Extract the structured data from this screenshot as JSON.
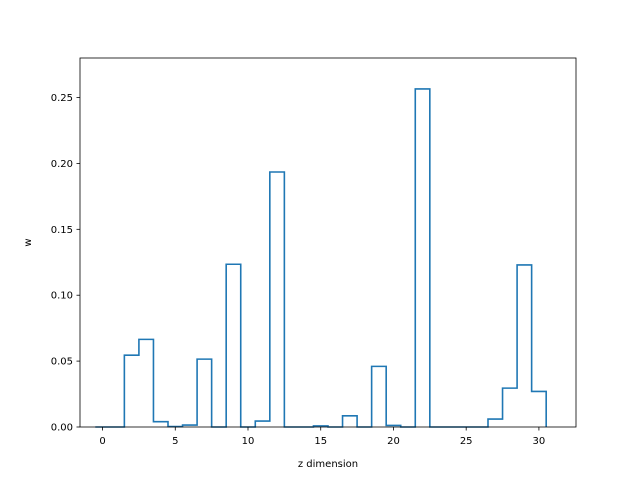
{
  "chart_data": {
    "type": "bar",
    "style": "step-histogram",
    "xlabel": "z dimension",
    "ylabel": "w",
    "xlim": [
      -1.55,
      32.55
    ],
    "ylim": [
      0,
      0.28
    ],
    "xticks": [
      0,
      5,
      10,
      15,
      20,
      25,
      30
    ],
    "xtick_labels": [
      "0",
      "5",
      "10",
      "15",
      "20",
      "25",
      "30"
    ],
    "yticks": [
      0.0,
      0.05,
      0.1,
      0.15,
      0.2,
      0.25
    ],
    "ytick_labels": [
      "0.00",
      "0.05",
      "0.10",
      "0.15",
      "0.20",
      "0.25"
    ],
    "grid": false,
    "color": "#1f77b4",
    "x": [
      0,
      1,
      2,
      3,
      4,
      5,
      6,
      7,
      8,
      9,
      10,
      11,
      12,
      13,
      14,
      15,
      16,
      17,
      18,
      19,
      20,
      21,
      22,
      23,
      24,
      25,
      26,
      27,
      28,
      29,
      30
    ],
    "values": [
      0.0,
      0.0,
      0.0545,
      0.0665,
      0.004,
      0.0003,
      0.0015,
      0.0515,
      0.0,
      0.1235,
      0.0,
      0.0045,
      0.1935,
      0.0,
      0.0,
      0.0008,
      0.0,
      0.0085,
      0.0,
      0.046,
      0.0012,
      0.0,
      0.2565,
      0.0,
      0.0,
      0.0,
      0.0,
      0.006,
      0.0295,
      0.123,
      0.027
    ]
  }
}
